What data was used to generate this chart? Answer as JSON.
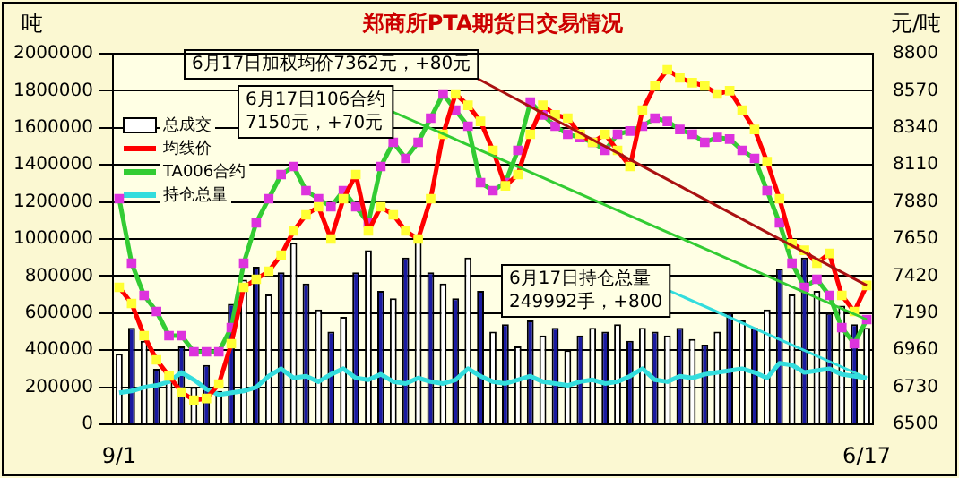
{
  "chart_data": {
    "type": "bar",
    "title": "郑商所PTA期货日交易情况",
    "ylabel": "吨",
    "y2label": "元/吨",
    "categories": [
      "9/1",
      null,
      null,
      null,
      null,
      null,
      null,
      null,
      null,
      null,
      null,
      null,
      null,
      null,
      null,
      null,
      null,
      null,
      null,
      null,
      null,
      null,
      null,
      null,
      null,
      null,
      null,
      null,
      null,
      null,
      null,
      null,
      null,
      null,
      null,
      null,
      null,
      null,
      null,
      null,
      null,
      null,
      null,
      null,
      null,
      null,
      null,
      null,
      null,
      null,
      null,
      null,
      null,
      null,
      null,
      null,
      null,
      null,
      null,
      null,
      "6/17"
    ],
    "series": [
      {
        "name": "总成交",
        "color": "#ffffff",
        "colors": [
          "#ffffff",
          "#1a1aa0",
          "#ffffff",
          "#1a1aa0",
          "#ffffff",
          "#1a1aa0",
          "#ffffff",
          "#1a1aa0",
          "#ffffff",
          "#1a1aa0",
          "#ffffff",
          "#1a1aa0",
          "#ffffff",
          "#1a1aa0",
          "#ffffff",
          "#1a1aa0",
          "#ffffff",
          "#1a1aa0",
          "#ffffff",
          "#1a1aa0",
          "#ffffff",
          "#1a1aa0",
          "#ffffff",
          "#1a1aa0",
          "#ffffff",
          "#1a1aa0",
          "#ffffff",
          "#1a1aa0",
          "#ffffff",
          "#1a1aa0",
          "#ffffff",
          "#1a1aa0",
          "#ffffff",
          "#1a1aa0",
          "#ffffff",
          "#1a1aa0",
          "#ffffff",
          "#1a1aa0",
          "#ffffff",
          "#1a1aa0",
          "#ffffff",
          "#1a1aa0",
          "#ffffff",
          "#1a1aa0",
          "#ffffff",
          "#1a1aa0",
          "#ffffff",
          "#1a1aa0",
          "#ffffff",
          "#1a1aa0",
          "#ffffff",
          "#1a1aa0",
          "#ffffff",
          "#1a1aa0",
          "#ffffff",
          "#1a1aa0",
          "#ffffff",
          "#1a1aa0",
          "#ffffff",
          "#1a1aa0",
          "#ffffff"
        ],
        "values": [
          380000,
          520000,
          450000,
          300000,
          250000,
          420000,
          200000,
          320000,
          180000,
          650000,
          780000,
          850000,
          700000,
          820000,
          980000,
          760000,
          620000,
          500000,
          580000,
          820000,
          940000,
          720000,
          680000,
          900000,
          1000000,
          820000,
          760000,
          680000,
          900000,
          720000,
          500000,
          540000,
          420000,
          560000,
          480000,
          520000,
          400000,
          480000,
          520000,
          500000,
          540000,
          450000,
          520000,
          500000,
          480000,
          520000,
          460000,
          430000,
          500000,
          600000,
          560000,
          520000,
          620000,
          840000,
          700000,
          900000,
          720000,
          600000,
          640000,
          540000,
          520000
        ]
      },
      {
        "name": "均线价",
        "type": "line",
        "axis": "y2",
        "color": "#ff0000",
        "marker": "square",
        "values": [
          7350,
          7250,
          7050,
          6900,
          6800,
          6700,
          6650,
          6660,
          6750,
          7000,
          7350,
          7400,
          7450,
          7550,
          7700,
          7800,
          7850,
          7650,
          7900,
          8050,
          7700,
          7850,
          7800,
          7700,
          7650,
          7900,
          8300,
          8550,
          8480,
          8380,
          8200,
          7980,
          8050,
          8300,
          8480,
          8420,
          8400,
          8300,
          8250,
          8300,
          8200,
          8100,
          8450,
          8600,
          8700,
          8650,
          8620,
          8600,
          8550,
          8570,
          8450,
          8330,
          8130,
          7900,
          7620,
          7580,
          7500,
          7560,
          7300,
          7200,
          7362
        ]
      },
      {
        "name": "TA006合约",
        "type": "line",
        "axis": "y2",
        "color": "#33cc33",
        "marker": "square",
        "values": [
          7900,
          7500,
          7300,
          7200,
          7050,
          7050,
          6950,
          6950,
          6950,
          7100,
          7500,
          7750,
          7900,
          8050,
          8100,
          7950,
          7900,
          7850,
          7950,
          7850,
          7750,
          8100,
          8250,
          8150,
          8250,
          8400,
          8550,
          8450,
          8350,
          8000,
          7950,
          8000,
          8200,
          8500,
          8420,
          8350,
          8300,
          8280,
          8250,
          8200,
          8300,
          8320,
          8350,
          8400,
          8380,
          8330,
          8300,
          8250,
          8280,
          8270,
          8200,
          8150,
          7950,
          7750,
          7500,
          7350,
          7400,
          7300,
          7100,
          7000,
          7150
        ]
      },
      {
        "name": "持仓总量",
        "type": "line",
        "color": "#33dddd",
        "marker": "none",
        "values": [
          170000,
          180000,
          200000,
          210000,
          230000,
          280000,
          240000,
          190000,
          160000,
          170000,
          180000,
          200000,
          260000,
          300000,
          250000,
          260000,
          230000,
          270000,
          300000,
          250000,
          240000,
          270000,
          230000,
          220000,
          250000,
          230000,
          220000,
          240000,
          300000,
          260000,
          230000,
          220000,
          240000,
          260000,
          230000,
          220000,
          210000,
          230000,
          240000,
          220000,
          230000,
          260000,
          300000,
          240000,
          230000,
          260000,
          250000,
          270000,
          280000,
          290000,
          300000,
          280000,
          250000,
          330000,
          320000,
          280000,
          290000,
          300000,
          270000,
          260000,
          249992
        ]
      }
    ],
    "ylim": [
      0,
      2000000
    ],
    "yticks": [
      0,
      200000,
      400000,
      600000,
      800000,
      1000000,
      1200000,
      1400000,
      1600000,
      1800000,
      2000000
    ],
    "y2lim": [
      6500,
      8800
    ],
    "y2ticks": [
      6500,
      6730,
      6960,
      7190,
      7420,
      7650,
      7880,
      8110,
      8340,
      8570,
      8800
    ],
    "grid": "y",
    "legend": "top left",
    "annotations": [
      "6月17日加权均价7362元，+80元",
      "6月17日106合约\n7150元，+70元",
      {
        "text": "6月17日持仓总量\n249992手，+800",
        "x": "6/17",
        "y": 249992
      }
    ]
  }
}
